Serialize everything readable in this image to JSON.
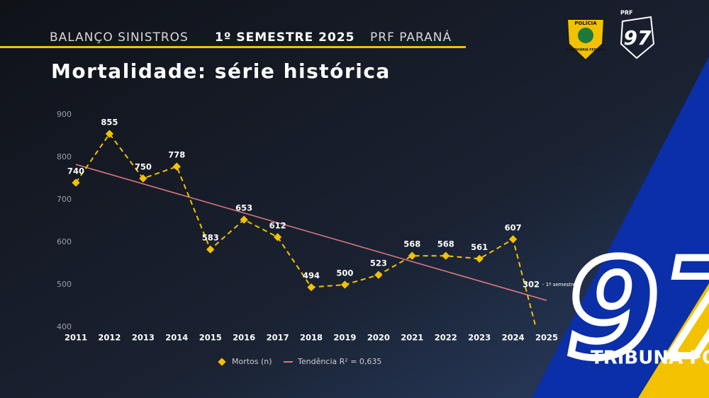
{
  "header": {
    "left": "BALANÇO SINISTROS",
    "middle": "1º SEMESTRE 2025",
    "right": "PRF PARANÁ"
  },
  "logos": {
    "badge_top": "POLÍCIA",
    "badge_bottom": "RODOVIÁRIA FEDERAL",
    "prf": "PRF",
    "number": "97",
    "brand": "TRIBUNA FOZ"
  },
  "chart_data": {
    "type": "line",
    "title": "Mortalidade: série histórica",
    "x": [
      2011,
      2012,
      2013,
      2014,
      2015,
      2016,
      2017,
      2018,
      2019,
      2020,
      2021,
      2022,
      2023,
      2024,
      2025
    ],
    "xlim": [
      2011,
      2025
    ],
    "series": [
      {
        "name": "Mortos (n)",
        "color": "#f2c200",
        "values": [
          740,
          855,
          750,
          778,
          583,
          653,
          612,
          494,
          500,
          523,
          568,
          568,
          561,
          607,
          302
        ]
      }
    ],
    "trend": {
      "name": "Tendência R² = 0,635",
      "color": "#d9777f",
      "x": [
        2011,
        2025
      ],
      "values": [
        783,
        463
      ]
    },
    "annotation": "- 1º semestre*",
    "ylim": [
      400,
      900
    ],
    "yticks": [
      400,
      500,
      600,
      700,
      800,
      900
    ],
    "grid": false,
    "legend": "bottom"
  }
}
